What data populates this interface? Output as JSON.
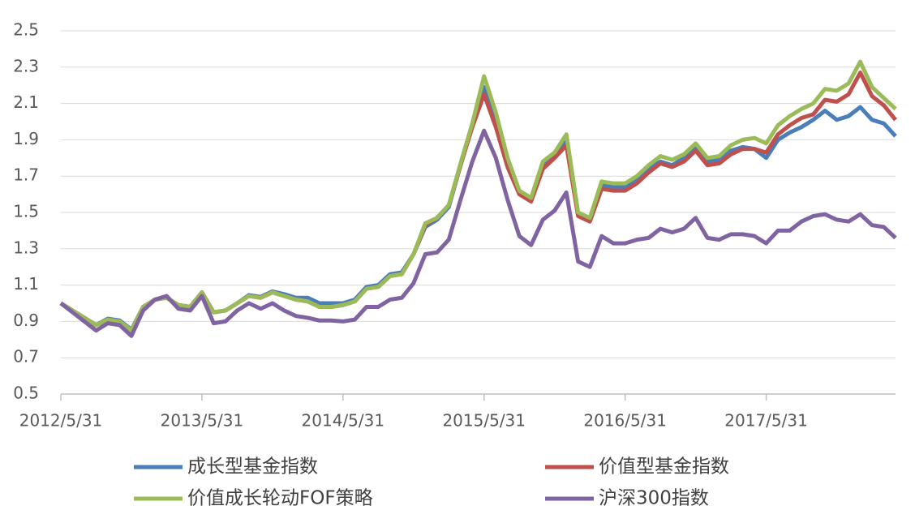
{
  "chart_data": {
    "type": "line",
    "categories": [
      "2012/5/31",
      null,
      null,
      null,
      null,
      null,
      null,
      null,
      null,
      null,
      null,
      null,
      "2013/5/31",
      null,
      null,
      null,
      null,
      null,
      null,
      null,
      null,
      null,
      null,
      null,
      "2014/5/31",
      null,
      null,
      null,
      null,
      null,
      null,
      null,
      null,
      null,
      null,
      null,
      "2015/5/31",
      null,
      null,
      null,
      null,
      null,
      null,
      null,
      null,
      null,
      null,
      null,
      "2016/5/31",
      null,
      null,
      null,
      null,
      null,
      null,
      null,
      null,
      null,
      null,
      null,
      "2017/5/31",
      null,
      null,
      null,
      null,
      null,
      null,
      null,
      null,
      null,
      null,
      null
    ],
    "ylim": [
      0.5,
      2.5
    ],
    "yticks": [
      0.5,
      0.7,
      0.9,
      1.1,
      1.3,
      1.5,
      1.7,
      1.9,
      2.1,
      2.3,
      2.5
    ],
    "grid": true,
    "legend": "bottom",
    "series": [
      {
        "name": "成长型基金指数",
        "color": "#4a7ebb",
        "values": [
          1.0,
          0.96,
          0.92,
          0.88,
          0.915,
          0.905,
          0.855,
          0.98,
          1.02,
          1.03,
          0.99,
          0.98,
          1.06,
          0.95,
          0.96,
          1.0,
          1.045,
          1.035,
          1.065,
          1.05,
          1.03,
          1.03,
          1.0,
          1.0,
          1.0,
          1.02,
          1.09,
          1.1,
          1.16,
          1.17,
          1.27,
          1.42,
          1.46,
          1.53,
          1.76,
          1.98,
          2.19,
          2.0,
          1.78,
          1.61,
          1.57,
          1.76,
          1.82,
          1.9,
          1.49,
          1.46,
          1.65,
          1.64,
          1.64,
          1.68,
          1.74,
          1.78,
          1.76,
          1.8,
          1.86,
          1.78,
          1.79,
          1.84,
          1.86,
          1.85,
          1.8,
          1.9,
          1.94,
          1.97,
          2.01,
          2.06,
          2.01,
          2.03,
          2.08,
          2.01,
          1.99,
          1.92
        ]
      },
      {
        "name": "价值型基金指数",
        "color": "#c0504d",
        "values": [
          1.0,
          0.96,
          0.92,
          0.88,
          0.91,
          0.9,
          0.85,
          0.98,
          1.02,
          1.03,
          0.99,
          0.98,
          1.06,
          0.95,
          0.96,
          1.0,
          1.04,
          1.03,
          1.06,
          1.04,
          1.02,
          1.01,
          0.98,
          0.98,
          0.99,
          1.01,
          1.08,
          1.09,
          1.15,
          1.16,
          1.27,
          1.43,
          1.47,
          1.54,
          1.76,
          1.97,
          2.15,
          1.97,
          1.75,
          1.6,
          1.56,
          1.74,
          1.8,
          1.87,
          1.48,
          1.45,
          1.63,
          1.62,
          1.62,
          1.66,
          1.72,
          1.77,
          1.75,
          1.78,
          1.84,
          1.76,
          1.77,
          1.82,
          1.85,
          1.85,
          1.83,
          1.93,
          1.98,
          2.02,
          2.04,
          2.12,
          2.11,
          2.15,
          2.27,
          2.14,
          2.09,
          2.01
        ]
      },
      {
        "name": "价值成长轮动FOF策略",
        "color": "#9bbb59",
        "values": [
          1.0,
          0.96,
          0.92,
          0.88,
          0.91,
          0.9,
          0.85,
          0.98,
          1.02,
          1.03,
          0.99,
          0.98,
          1.06,
          0.95,
          0.96,
          1.0,
          1.04,
          1.03,
          1.06,
          1.04,
          1.02,
          1.01,
          0.98,
          0.98,
          0.99,
          1.01,
          1.08,
          1.09,
          1.15,
          1.16,
          1.27,
          1.44,
          1.47,
          1.54,
          1.77,
          1.99,
          2.25,
          2.05,
          1.8,
          1.62,
          1.58,
          1.78,
          1.83,
          1.93,
          1.5,
          1.47,
          1.67,
          1.66,
          1.66,
          1.7,
          1.76,
          1.81,
          1.79,
          1.82,
          1.88,
          1.8,
          1.81,
          1.87,
          1.9,
          1.91,
          1.88,
          1.98,
          2.03,
          2.07,
          2.1,
          2.18,
          2.17,
          2.21,
          2.33,
          2.19,
          2.13,
          2.07
        ]
      },
      {
        "name": "沪深300指数",
        "color": "#8064a2",
        "values": [
          1.0,
          0.95,
          0.9,
          0.85,
          0.89,
          0.88,
          0.82,
          0.96,
          1.02,
          1.04,
          0.97,
          0.96,
          1.04,
          0.89,
          0.9,
          0.96,
          1.0,
          0.97,
          1.0,
          0.96,
          0.93,
          0.92,
          0.905,
          0.905,
          0.9,
          0.91,
          0.98,
          0.98,
          1.02,
          1.03,
          1.11,
          1.27,
          1.28,
          1.35,
          1.57,
          1.78,
          1.95,
          1.8,
          1.57,
          1.37,
          1.32,
          1.46,
          1.51,
          1.61,
          1.23,
          1.2,
          1.37,
          1.33,
          1.33,
          1.35,
          1.36,
          1.41,
          1.39,
          1.41,
          1.47,
          1.36,
          1.35,
          1.38,
          1.38,
          1.37,
          1.33,
          1.4,
          1.4,
          1.45,
          1.48,
          1.49,
          1.46,
          1.45,
          1.49,
          1.43,
          1.42,
          1.36
        ]
      }
    ]
  }
}
